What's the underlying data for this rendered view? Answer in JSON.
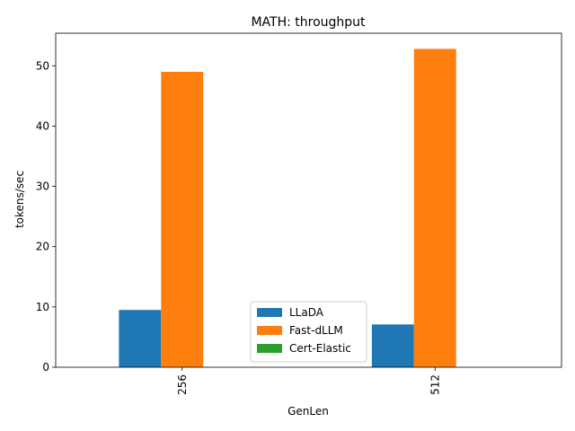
{
  "chart_data": {
    "type": "bar",
    "title": "MATH: throughput",
    "xlabel": "GenLen",
    "ylabel": "tokens/sec",
    "categories": [
      "256",
      "512"
    ],
    "series": [
      {
        "name": "LLaDA",
        "color": "#1f77b4",
        "values": [
          9.5,
          7.1
        ]
      },
      {
        "name": "Fast-dLLM",
        "color": "#ff7f0e",
        "values": [
          49.0,
          52.8
        ]
      },
      {
        "name": "Cert-Elastic",
        "color": "#2ca02c",
        "values": [
          0,
          0
        ]
      }
    ],
    "ylim": [
      0,
      55.4
    ],
    "yticks": [
      0,
      10,
      20,
      30,
      40,
      50
    ],
    "grid": false,
    "legend_position": "lower-center"
  }
}
